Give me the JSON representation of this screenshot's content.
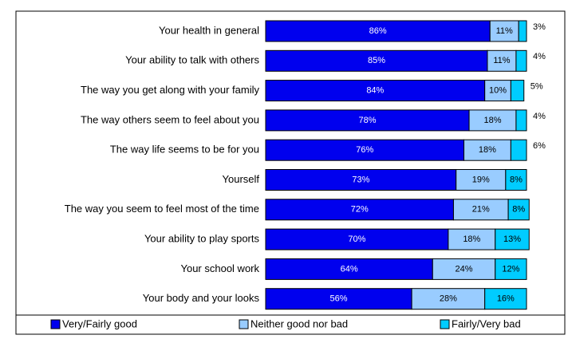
{
  "chart_data": {
    "type": "stacked-bar-horizontal",
    "categories": [
      "Your health in general",
      "Your ability to talk with others",
      "The way you get along with your family",
      "The way others seem to feel about you",
      "The way life seems to be for you",
      "Yourself",
      "The way you seem to feel most of the time",
      "Your ability to play sports",
      "Your school work",
      "Your body and your looks"
    ],
    "xlim": [
      0,
      100
    ],
    "series": [
      {
        "name": "Very/Fairly good",
        "color": "#0000ee",
        "values": [
          86,
          85,
          84,
          78,
          76,
          73,
          72,
          70,
          64,
          56
        ],
        "value_labels": [
          "86%",
          "85%",
          "84%",
          "78%",
          "76%",
          "73%",
          "72%",
          "70%",
          "64%",
          "56%"
        ]
      },
      {
        "name": "Neither good nor bad",
        "color": "#99ccff",
        "values": [
          11,
          11,
          10,
          18,
          18,
          19,
          21,
          18,
          24,
          28
        ],
        "value_labels": [
          "11%",
          "11%",
          "10%",
          "18%",
          "18%",
          "19%",
          "21%",
          "18%",
          "24%",
          "28%"
        ]
      },
      {
        "name": "Fairly/Very bad",
        "color": "#00ccff",
        "values": [
          3,
          4,
          5,
          4,
          6,
          8,
          8,
          13,
          12,
          16
        ],
        "value_labels": [
          "3%",
          "4%",
          "5%",
          "4%",
          "6%",
          "8%",
          "8%",
          "13%",
          "12%",
          "16%"
        ]
      }
    ],
    "legend": "bottom"
  }
}
